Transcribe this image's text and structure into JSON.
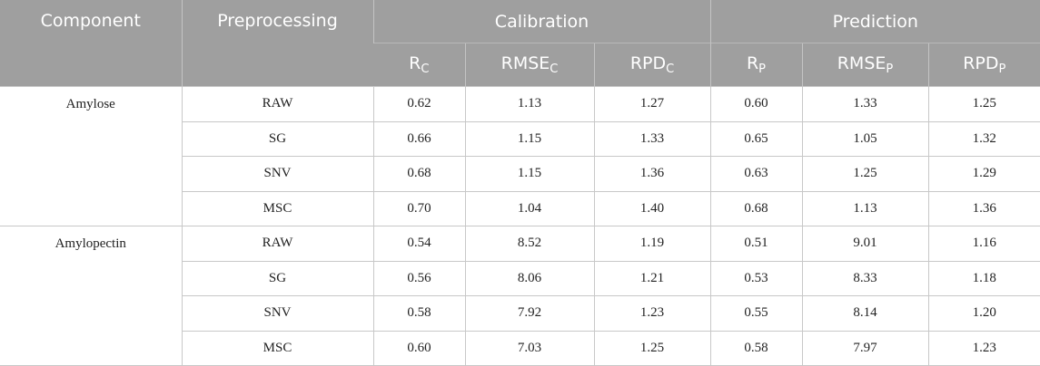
{
  "table": {
    "header": {
      "component": "Component",
      "preprocessing": "Preprocessing",
      "calibration": "Calibration",
      "prediction": "Prediction",
      "columns": [
        {
          "base": "R",
          "sub": "C"
        },
        {
          "base": "RMSE",
          "sub": "C"
        },
        {
          "base": "RPD",
          "sub": "C"
        },
        {
          "base": "R",
          "sub": "P"
        },
        {
          "base": "RMSE",
          "sub": "P"
        },
        {
          "base": "RPD",
          "sub": "P"
        }
      ]
    },
    "groups": [
      {
        "component": "Amylose",
        "rows": [
          [
            "RAW",
            "0.62",
            "1.13",
            "1.27",
            "0.60",
            "1.33",
            "1.25"
          ],
          [
            "SG",
            "0.66",
            "1.15",
            "1.33",
            "0.65",
            "1.05",
            "1.32"
          ],
          [
            "SNV",
            "0.68",
            "1.15",
            "1.36",
            "0.63",
            "1.25",
            "1.29"
          ],
          [
            "MSC",
            "0.70",
            "1.04",
            "1.40",
            "0.68",
            "1.13",
            "1.36"
          ]
        ]
      },
      {
        "component": "Amylopectin",
        "rows": [
          [
            "RAW",
            "0.54",
            "8.52",
            "1.19",
            "0.51",
            "9.01",
            "1.16"
          ],
          [
            "SG",
            "0.56",
            "8.06",
            "1.21",
            "0.53",
            "8.33",
            "1.18"
          ],
          [
            "SNV",
            "0.58",
            "7.92",
            "1.23",
            "0.55",
            "8.14",
            "1.20"
          ],
          [
            "MSC",
            "0.60",
            "7.03",
            "1.25",
            "0.58",
            "7.97",
            "1.23"
          ]
        ]
      }
    ]
  }
}
